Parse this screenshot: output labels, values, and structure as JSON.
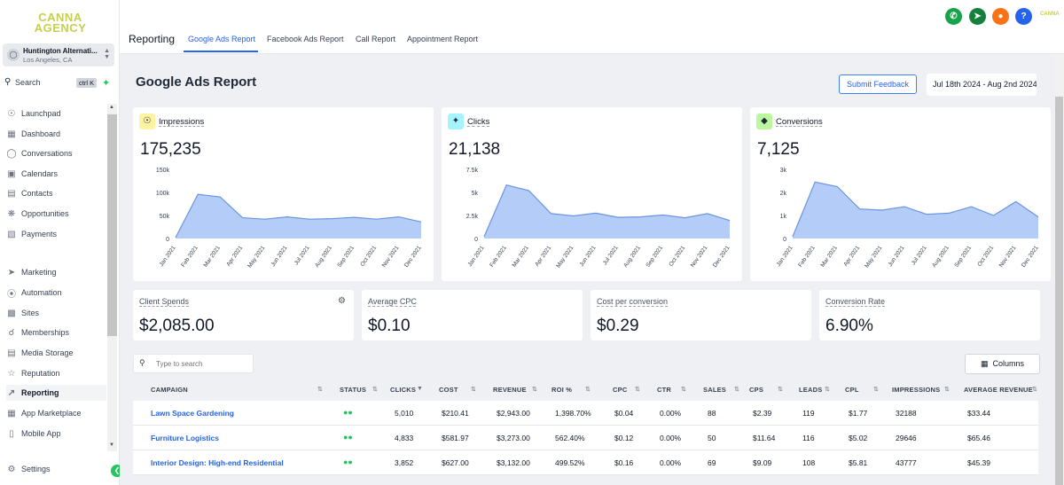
{
  "sidebar": {
    "logo_line1": "CANNA",
    "logo_line2": "AGENCY",
    "location": {
      "name": "Huntington Alternati...",
      "city": "Los Angeles, CA"
    },
    "search": {
      "label": "Search",
      "shortcut": "ctrl K"
    },
    "items": [
      {
        "label": "Launchpad",
        "icon": "rocket-icon"
      },
      {
        "label": "Dashboard",
        "icon": "grid-icon"
      },
      {
        "label": "Conversations",
        "icon": "chat-icon"
      },
      {
        "label": "Calendars",
        "icon": "calendar-icon"
      },
      {
        "label": "Contacts",
        "icon": "contacts-icon"
      },
      {
        "label": "Opportunities",
        "icon": "opportunities-icon"
      },
      {
        "label": "Payments",
        "icon": "payments-icon"
      },
      {
        "label": "Marketing",
        "icon": "send-icon"
      },
      {
        "label": "Automation",
        "icon": "automation-icon"
      },
      {
        "label": "Sites",
        "icon": "sites-icon"
      },
      {
        "label": "Memberships",
        "icon": "membership-icon"
      },
      {
        "label": "Media Storage",
        "icon": "media-icon"
      },
      {
        "label": "Reputation",
        "icon": "star-icon"
      },
      {
        "label": "Reporting",
        "icon": "trend-icon"
      },
      {
        "label": "App Marketplace",
        "icon": "apps-icon"
      },
      {
        "label": "Mobile App",
        "icon": "mobile-icon"
      }
    ],
    "settings_label": "Settings"
  },
  "topbar": {
    "title": "Reporting",
    "tabs": [
      "Google Ads Report",
      "Facebook Ads Report",
      "Call Report",
      "Appointment Report"
    ],
    "active_tab": 0,
    "mini_logo": "CANNA"
  },
  "header": {
    "page_title": "Google Ads Report",
    "feedback_label": "Submit Feedback",
    "date_range": "Jul 18th 2024 - Aug 2nd 2024"
  },
  "chart_data": [
    {
      "type": "area",
      "title": "Impressions",
      "total": "175,235",
      "categories": [
        "Jan 2021",
        "Feb 2021",
        "Mar 2021",
        "Apr 2021",
        "May 2021",
        "Jun 2021",
        "Jul 2021",
        "Aug 2021",
        "Sep 2021",
        "Oct 2021",
        "Nov 2021",
        "Dec 2021"
      ],
      "values": [
        2000,
        96000,
        90000,
        45000,
        42000,
        47000,
        42000,
        43000,
        46000,
        42000,
        47000,
        36000
      ],
      "ylim": [
        0,
        150000
      ],
      "yticks": [
        "0",
        "50k",
        "100k",
        "150k"
      ],
      "yticks_values": [
        0,
        50000,
        100000,
        150000
      ],
      "color": "#a7c4f7",
      "icon_color": "#fef3a0"
    },
    {
      "type": "area",
      "title": "Clicks",
      "total": "21,138",
      "categories": [
        "Jan 2021",
        "Feb 2021",
        "Mar 2021",
        "Apr 2021",
        "May 2021",
        "Jun 2021",
        "Jul 2021",
        "Aug 2021",
        "Sep 2021",
        "Oct 2021",
        "Nov 2021",
        "Dec 2021"
      ],
      "values": [
        200,
        5800,
        5200,
        2700,
        2450,
        2750,
        2300,
        2350,
        2550,
        2250,
        2700,
        1950
      ],
      "ylim": [
        0,
        7500
      ],
      "yticks": [
        "0",
        "2.5k",
        "5k",
        "7.5k"
      ],
      "yticks_values": [
        0,
        2500,
        5000,
        7500
      ],
      "color": "#a7c4f7",
      "icon_color": "#a5f3fc"
    },
    {
      "type": "area",
      "title": "Conversions",
      "total": "7,125",
      "categories": [
        "Jan 2021",
        "Feb 2021",
        "Mar 2021",
        "Apr 2021",
        "May 2021",
        "Jun 2021",
        "Jul 2021",
        "Aug 2021",
        "Sep 2021",
        "Oct 2021",
        "Nov 2021",
        "Dec 2021"
      ],
      "values": [
        80,
        2450,
        2250,
        1280,
        1230,
        1380,
        1050,
        1100,
        1380,
        1000,
        1600,
        930
      ],
      "ylim": [
        0,
        3000
      ],
      "yticks": [
        "0",
        "1k",
        "2k",
        "3k"
      ],
      "yticks_values": [
        0,
        1000,
        2000,
        3000
      ],
      "color": "#a7c4f7",
      "icon_color": "#bbf7a0"
    }
  ],
  "stats": [
    {
      "label": "Client Spends",
      "value": "$2,085.00"
    },
    {
      "label": "Average CPC",
      "value": "$0.10"
    },
    {
      "label": "Cost per conversion",
      "value": "$0.29"
    },
    {
      "label": "Conversion Rate",
      "value": "6.90%"
    }
  ],
  "table": {
    "search_placeholder": "Type to search",
    "columns_label": "Columns",
    "headers": [
      "CAMPAIGN",
      "STATUS",
      "CLICKS",
      "COST",
      "REVENUE",
      "ROI %",
      "CPC",
      "CTR",
      "SALES",
      "CPS",
      "LEADS",
      "CPL",
      "IMPRESSIONS",
      "AVERAGE REVENUE"
    ],
    "rows": [
      {
        "campaign": "Lawn Space Gardening",
        "clicks": "5,010",
        "cost": "$210.41",
        "revenue": "$2,943.00",
        "roi": "1,398.70%",
        "cpc": "$0.04",
        "ctr": "0.00%",
        "sales": "88",
        "cps": "$2.39",
        "leads": "119",
        "cpl": "$1.77",
        "impressions": "32188",
        "avg_revenue": "$33.44"
      },
      {
        "campaign": "Furniture Logistics",
        "clicks": "4,833",
        "cost": "$581.97",
        "revenue": "$3,273.00",
        "roi": "562.40%",
        "cpc": "$0.12",
        "ctr": "0.00%",
        "sales": "50",
        "cps": "$11.64",
        "leads": "116",
        "cpl": "$5.02",
        "impressions": "29646",
        "avg_revenue": "$65.46"
      },
      {
        "campaign": "Interior Design: High-end Residential",
        "clicks": "3,852",
        "cost": "$627.00",
        "revenue": "$3,132.00",
        "roi": "499.52%",
        "cpc": "$0.16",
        "ctr": "0.00%",
        "sales": "69",
        "cps": "$9.09",
        "leads": "108",
        "cpl": "$5.81",
        "impressions": "43777",
        "avg_revenue": "$45.39"
      }
    ]
  }
}
